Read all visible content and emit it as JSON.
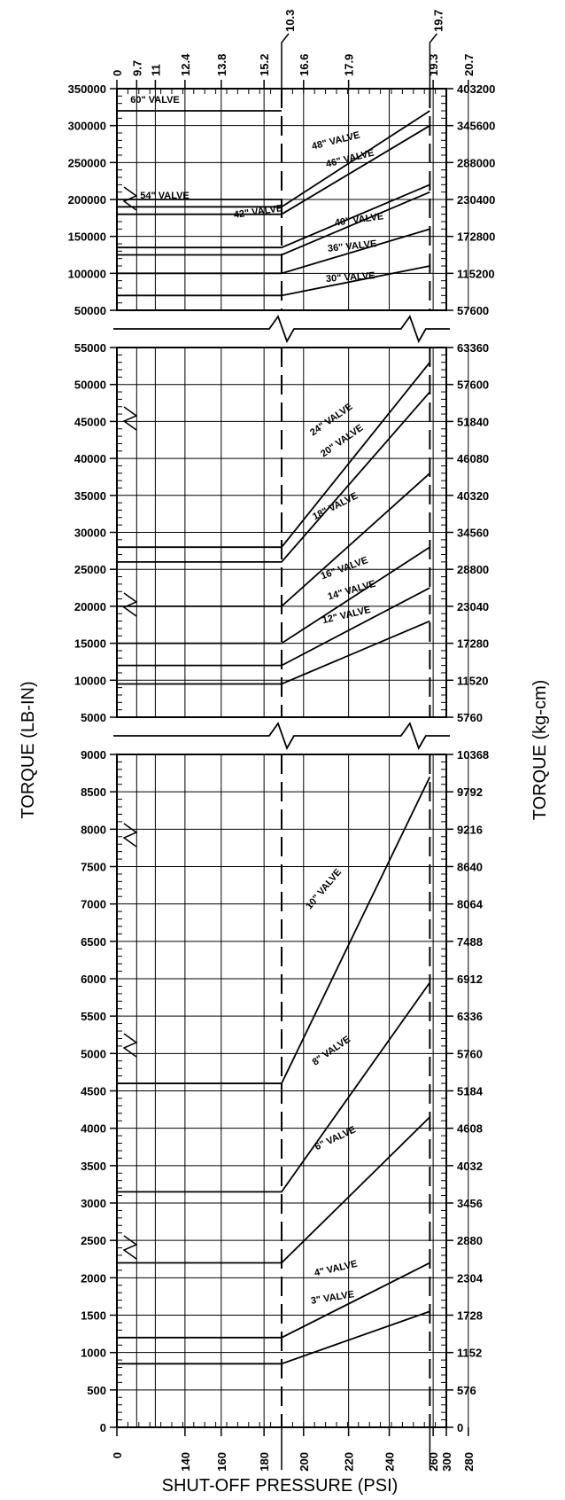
{
  "chart_data": {
    "type": "line",
    "xlabel": "SHUT-OFF PRESSURE (PSI)",
    "ylabel_left": "TORQUE (LB-IN)",
    "ylabel_right": "TORQUE (kg-cm)",
    "xlim": [
      0,
      300
    ],
    "x_ticks_bottom": [
      "0",
      "140",
      "160",
      "180",
      "200",
      "220",
      "240",
      "260",
      "280",
      "300"
    ],
    "x_ticks_bottom_offset": [
      "150",
      "285"
    ],
    "x_ticks_top": [
      "0",
      "9.7",
      "11",
      "12.4",
      "13.8",
      "15.2",
      "16.6",
      "17.9",
      "19.3",
      "20.7"
    ],
    "x_ticks_top_offset": [
      "10.3",
      "19.7"
    ],
    "panels": [
      {
        "name": "large-valves",
        "ylim": [
          50000,
          350000
        ],
        "y_ticks": [
          "50000",
          "100000",
          "150000",
          "200000",
          "250000",
          "300000",
          "350000"
        ],
        "y_ticks_right": [
          "57600",
          "115200",
          "172800",
          "230400",
          "288000",
          "345600",
          "403200"
        ],
        "series": [
          {
            "name": "60\" VALVE",
            "points": [
              [
                0,
                320000
              ],
              [
                150,
                320000
              ]
            ]
          },
          {
            "name": "54\" VALVE",
            "points": [
              [
                0,
                200000
              ],
              [
                150,
                200000
              ]
            ]
          },
          {
            "name": "48\" VALVE",
            "points": [
              [
                0,
                190000
              ],
              [
                150,
                190000
              ],
              [
                285,
                320000
              ]
            ]
          },
          {
            "name": "46\" VALVE",
            "points": [
              [
                0,
                180000
              ],
              [
                150,
                180000
              ],
              [
                285,
                300000
              ]
            ]
          },
          {
            "name": "42\" VALVE",
            "points": [
              [
                0,
                135000
              ],
              [
                150,
                135000
              ],
              [
                285,
                220000
              ]
            ]
          },
          {
            "name": "40\" VALVE",
            "points": [
              [
                0,
                125000
              ],
              [
                150,
                125000
              ],
              [
                285,
                210000
              ]
            ]
          },
          {
            "name": "36\" VALVE",
            "points": [
              [
                0,
                100000
              ],
              [
                150,
                100000
              ],
              [
                285,
                160000
              ]
            ]
          },
          {
            "name": "30\" VALVE",
            "points": [
              [
                0,
                70000
              ],
              [
                150,
                70000
              ],
              [
                285,
                110000
              ]
            ]
          }
        ]
      },
      {
        "name": "medium-valves",
        "ylim": [
          5000,
          55000
        ],
        "y_ticks": [
          "5000",
          "10000",
          "15000",
          "20000",
          "25000",
          "30000",
          "35000",
          "40000",
          "45000",
          "50000",
          "55000"
        ],
        "y_ticks_right": [
          "5760",
          "11520",
          "17280",
          "23040",
          "28800",
          "34560",
          "40320",
          "46080",
          "51840",
          "57600",
          "63360"
        ],
        "series": [
          {
            "name": "24\" VALVE",
            "points": [
              [
                0,
                28000
              ],
              [
                150,
                28000
              ],
              [
                285,
                53000
              ]
            ]
          },
          {
            "name": "20\" VALVE",
            "points": [
              [
                0,
                26000
              ],
              [
                150,
                26000
              ],
              [
                285,
                49000
              ]
            ]
          },
          {
            "name": "18\" VALVE",
            "points": [
              [
                0,
                20000
              ],
              [
                150,
                20000
              ],
              [
                285,
                38000
              ]
            ]
          },
          {
            "name": "16\" VALVE",
            "points": [
              [
                0,
                15000
              ],
              [
                150,
                15000
              ],
              [
                285,
                28000
              ]
            ]
          },
          {
            "name": "14\" VALVE",
            "points": [
              [
                0,
                12000
              ],
              [
                150,
                12000
              ],
              [
                285,
                22500
              ]
            ]
          },
          {
            "name": "12\" VALVE",
            "points": [
              [
                0,
                9500
              ],
              [
                150,
                9500
              ],
              [
                285,
                18000
              ]
            ]
          }
        ]
      },
      {
        "name": "small-valves",
        "ylim": [
          0,
          9000
        ],
        "y_ticks": [
          "0",
          "500",
          "1000",
          "1500",
          "2000",
          "2500",
          "3000",
          "3500",
          "4000",
          "4500",
          "5000",
          "5500",
          "6000",
          "6500",
          "7000",
          "7500",
          "8000",
          "8500",
          "9000"
        ],
        "y_ticks_right": [
          "0",
          "576",
          "1152",
          "1728",
          "2304",
          "2880",
          "3456",
          "4032",
          "4608",
          "5184",
          "5760",
          "6336",
          "6912",
          "7488",
          "8064",
          "8640",
          "9216",
          "9792",
          "10368"
        ],
        "series": [
          {
            "name": "10\" VALVE",
            "points": [
              [
                0,
                4600
              ],
              [
                150,
                4600
              ],
              [
                285,
                8700
              ]
            ]
          },
          {
            "name": "8\" VALVE",
            "points": [
              [
                0,
                3150
              ],
              [
                150,
                3150
              ],
              [
                285,
                5950
              ]
            ]
          },
          {
            "name": "6\" VALVE",
            "points": [
              [
                0,
                2200
              ],
              [
                150,
                2200
              ],
              [
                285,
                4150
              ]
            ]
          },
          {
            "name": "4\" VALVE",
            "points": [
              [
                0,
                1200
              ],
              [
                150,
                1200
              ],
              [
                285,
                2200
              ]
            ]
          },
          {
            "name": "3\" VALVE",
            "points": [
              [
                0,
                850
              ],
              [
                150,
                850
              ],
              [
                285,
                1550
              ]
            ]
          }
        ]
      }
    ]
  }
}
